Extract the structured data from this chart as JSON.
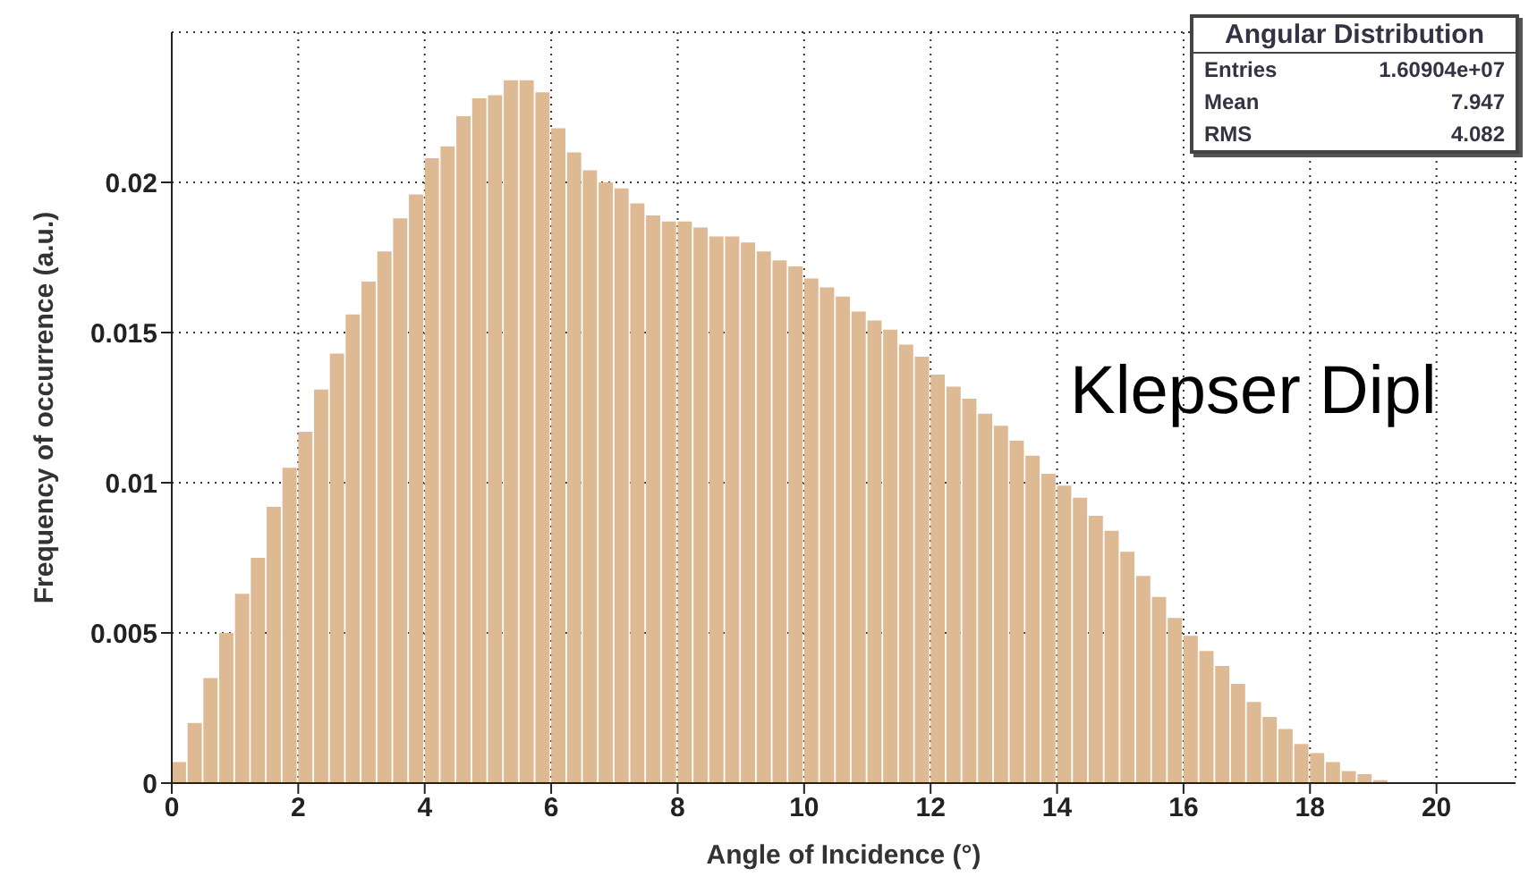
{
  "chart_data": {
    "type": "histogram",
    "xlabel": "Angle of Incidence (°)",
    "ylabel": "Frequency of occurrence (a.u.)",
    "bins": [
      0,
      0.25,
      0.5,
      0.75,
      1,
      1.25,
      1.5,
      1.75,
      2,
      2.25,
      2.5,
      2.75,
      3,
      3.25,
      3.5,
      3.75,
      4,
      4.25,
      4.5,
      4.75,
      5,
      5.25,
      5.5,
      5.75,
      6,
      6.25,
      6.5,
      6.75,
      7,
      7.25,
      7.5,
      7.75,
      8,
      8.25,
      8.5,
      8.75,
      9,
      9.25,
      9.5,
      9.75,
      10,
      10.25,
      10.5,
      10.75,
      11,
      11.25,
      11.5,
      11.75,
      12,
      12.25,
      12.5,
      12.75,
      13,
      13.25,
      13.5,
      13.75,
      14,
      14.25,
      14.5,
      14.75,
      15,
      15.25,
      15.5,
      15.75,
      16,
      16.25,
      16.5,
      16.75,
      17,
      17.25,
      17.5,
      17.75,
      18,
      18.25,
      18.5,
      18.75,
      19,
      19.25
    ],
    "values": [
      0.0007,
      0.002,
      0.0035,
      0.005,
      0.0063,
      0.0075,
      0.0092,
      0.0105,
      0.0117,
      0.0131,
      0.0143,
      0.0156,
      0.0167,
      0.0177,
      0.0188,
      0.0196,
      0.0208,
      0.0212,
      0.0222,
      0.0228,
      0.0229,
      0.0234,
      0.0234,
      0.023,
      0.0218,
      0.021,
      0.0204,
      0.02,
      0.0198,
      0.0193,
      0.0189,
      0.0187,
      0.0187,
      0.0185,
      0.0182,
      0.0182,
      0.018,
      0.0177,
      0.0174,
      0.0172,
      0.0168,
      0.0165,
      0.0162,
      0.0157,
      0.0154,
      0.0151,
      0.0146,
      0.0142,
      0.0136,
      0.0132,
      0.0128,
      0.0123,
      0.0119,
      0.0114,
      0.0109,
      0.0103,
      0.0099,
      0.0095,
      0.0089,
      0.0084,
      0.0077,
      0.0069,
      0.0062,
      0.0055,
      0.0049,
      0.0044,
      0.0039,
      0.0033,
      0.0027,
      0.0022,
      0.0018,
      0.0013,
      0.001,
      0.0007,
      0.0004,
      0.0003,
      0.0001
    ],
    "color": "#deba94",
    "xlim": [
      0,
      21.25
    ],
    "xticks": [
      0,
      2,
      4,
      6,
      8,
      10,
      12,
      14,
      16,
      18,
      20
    ],
    "ylim": [
      0,
      0.025
    ],
    "yticks": [
      0,
      0.005,
      0.01,
      0.015,
      0.02
    ],
    "grid": true,
    "annotations": [
      "Angular Distribution",
      "Entries",
      "1.60904e+07",
      "Mean",
      "7.947",
      "RMS",
      "4.082",
      "Klepser Dipl"
    ]
  }
}
